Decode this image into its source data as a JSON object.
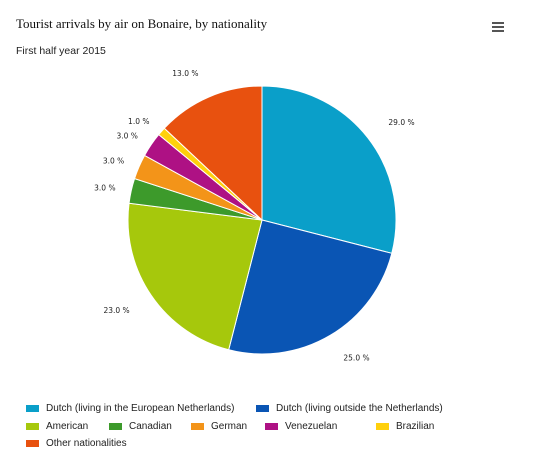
{
  "chart_data": {
    "type": "pie",
    "title": "Tourist arrivals by air on Bonaire, by nationality",
    "subtitle": "First half year 2015",
    "categories": [
      "Dutch (living in the European Netherlands)",
      "Dutch (living outside the Netherlands)",
      "American",
      "Canadian",
      "German",
      "Venezuelan",
      "Brazilian",
      "Other nationalities"
    ],
    "values": [
      29.0,
      25.0,
      23.0,
      3.0,
      3.0,
      3.0,
      1.0,
      13.0
    ],
    "labels": [
      "29.0 %",
      "25.0 %",
      "23.0 %",
      "3.0 %",
      "3.0 %",
      "3.0 %",
      "1.0 %",
      "13.0 %"
    ],
    "colors": [
      "#0a9fc9",
      "#0a55b4",
      "#a6c80c",
      "#3d9a2b",
      "#f39419",
      "#ae1184",
      "#ffd00c",
      "#e8510f"
    ],
    "legend_position": "bottom"
  },
  "menu": {
    "icon": "hamburger-menu-icon"
  }
}
